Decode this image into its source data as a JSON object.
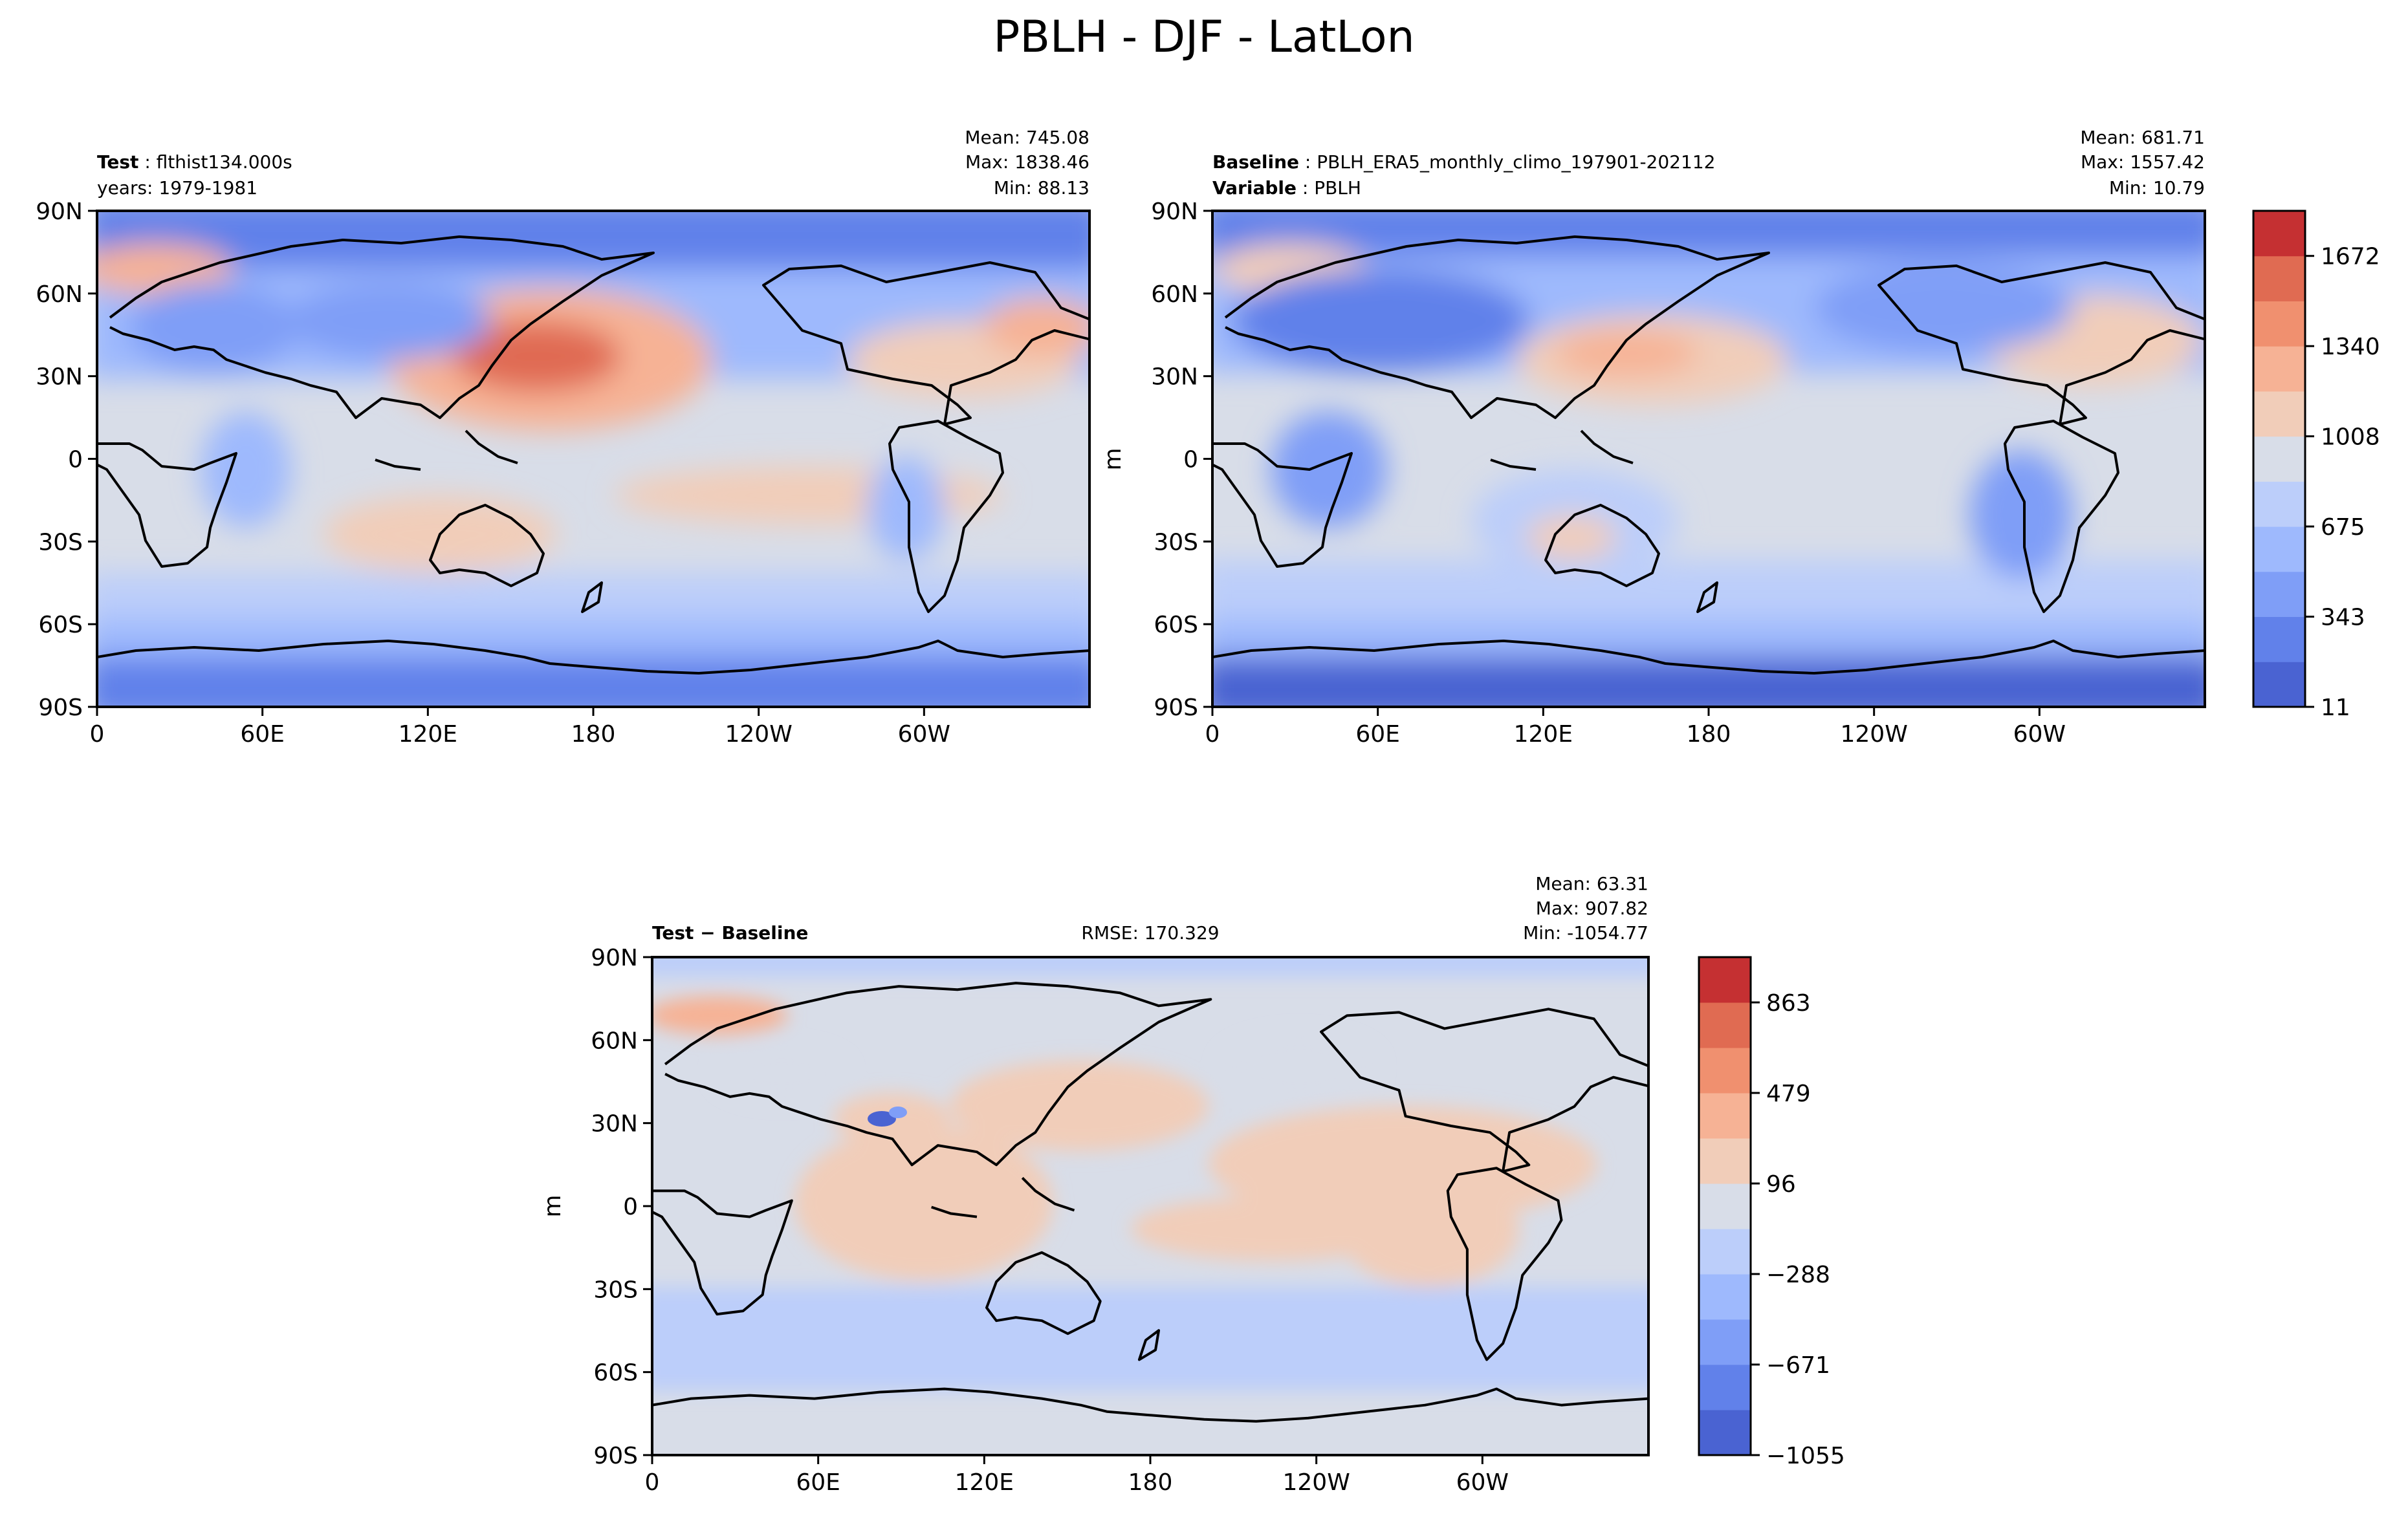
{
  "figure": {
    "title": "PBLH - DJF - LatLon"
  },
  "chart_data": [
    {
      "type": "heatmap",
      "panel": "test",
      "label_bold": "Test",
      "label_text": "flthist134.000s",
      "label_line2": "years: 1979-1981",
      "stats": {
        "mean": "Mean: 745.08",
        "max": "Max: 1838.46",
        "min": "Min: 88.13"
      },
      "x_ticks": [
        "0",
        "60E",
        "120E",
        "180",
        "120W",
        "60W"
      ],
      "y_ticks": [
        "90N",
        "60N",
        "30N",
        "0",
        "30S",
        "60S",
        "90S"
      ],
      "xlim": [
        0,
        360
      ],
      "ylim": [
        -90,
        90
      ],
      "ylabel": ""
    },
    {
      "type": "heatmap",
      "panel": "baseline",
      "label_bold": "Baseline",
      "label_text": "PBLH_ERA5_monthly_climo_197901-202112",
      "label_bold2": "Variable",
      "label_text2": "PBLH",
      "stats": {
        "mean": "Mean: 681.71",
        "max": "Max: 1557.42",
        "min": "Min: 10.79"
      },
      "x_ticks": [
        "0",
        "60E",
        "120E",
        "180",
        "120W",
        "60W"
      ],
      "y_ticks": [
        "90N",
        "60N",
        "30N",
        "0",
        "30S",
        "60S",
        "90S"
      ],
      "xlim": [
        0,
        360
      ],
      "ylim": [
        -90,
        90
      ],
      "ylabel": "m",
      "colorbar": {
        "ticks": [
          "11",
          "343",
          "675",
          "1008",
          "1340",
          "1672"
        ],
        "colors": [
          "#4a63d2",
          "#6181ea",
          "#7f9ef7",
          "#9eb9fd",
          "#bccefa",
          "#d8dde8",
          "#f1cdb9",
          "#f6b295",
          "#f0906f",
          "#e06b52",
          "#c53032"
        ]
      }
    },
    {
      "type": "heatmap",
      "panel": "diff",
      "label_bold": "Test − Baseline",
      "rmse": "RMSE: 170.329",
      "stats": {
        "mean": "Mean: 63.31",
        "max": "Max: 907.82",
        "min": "Min: -1054.77"
      },
      "x_ticks": [
        "0",
        "60E",
        "120E",
        "180",
        "120W",
        "60W"
      ],
      "y_ticks": [
        "90N",
        "60N",
        "30N",
        "0",
        "30S",
        "60S",
        "90S"
      ],
      "xlim": [
        0,
        360
      ],
      "ylim": [
        -90,
        90
      ],
      "ylabel": "m",
      "colorbar": {
        "ticks": [
          "−1055",
          "−671",
          "−288",
          "96",
          "479",
          "863"
        ],
        "colors": [
          "#4a63d2",
          "#6181ea",
          "#7f9ef7",
          "#9eb9fd",
          "#bccefa",
          "#d8dde8",
          "#f1cdb9",
          "#f6b295",
          "#f0906f",
          "#e06b52",
          "#c53032"
        ]
      }
    }
  ]
}
